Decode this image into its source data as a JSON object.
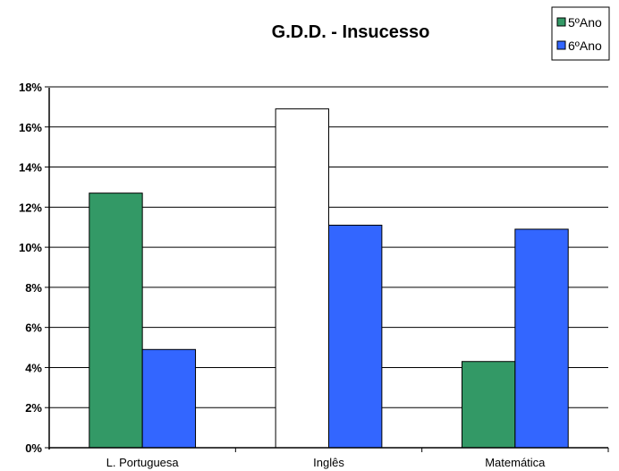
{
  "chart_data": {
    "type": "bar",
    "title": "G.D.D. - Insucesso",
    "xlabel": "",
    "ylabel": "",
    "categories": [
      "L. Portuguesa",
      "Inglês",
      "Matemática"
    ],
    "series": [
      {
        "name": "5ºAno",
        "values": [
          12.7,
          16.9,
          4.3
        ],
        "color": "#339966",
        "point_colors": [
          "#339966",
          "#ffffff",
          "#339966"
        ]
      },
      {
        "name": "6ºAno",
        "values": [
          4.9,
          11.1,
          10.9
        ],
        "color": "#3366ff"
      }
    ],
    "y_ticks": [
      0,
      2,
      4,
      6,
      8,
      10,
      12,
      14,
      16,
      18
    ],
    "ylim": [
      0,
      18
    ],
    "y_tick_format": "%",
    "grid": "horizontal",
    "legend_position": "top-right"
  }
}
